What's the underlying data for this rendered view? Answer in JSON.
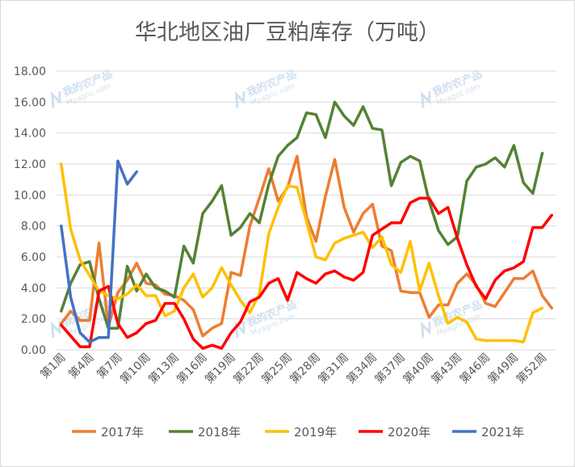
{
  "watermark": {
    "brand": "我的农产品",
    "domain": "Myagric.com"
  },
  "chart_data": {
    "type": "line",
    "title": "华北地区油厂豆粕库存（万吨）",
    "xlabel": "",
    "ylabel": "",
    "ylim": [
      0,
      18
    ],
    "yticks": [
      "0.00",
      "2.00",
      "4.00",
      "6.00",
      "8.00",
      "10.00",
      "12.00",
      "14.00",
      "16.00",
      "18.00"
    ],
    "xtick_labels": [
      "第1周",
      "第4周",
      "第7周",
      "第10周",
      "第13周",
      "第16周",
      "第19周",
      "第22周",
      "第25周",
      "第28周",
      "第31周",
      "第34周",
      "第37周",
      "第40周",
      "第43周",
      "第46周",
      "第49周",
      "第52周"
    ],
    "xtick_weeks": [
      1,
      4,
      7,
      10,
      13,
      16,
      19,
      22,
      25,
      28,
      31,
      34,
      37,
      40,
      43,
      46,
      49,
      52
    ],
    "grid": true,
    "legend_position": "bottom",
    "series": [
      {
        "name": "2017年",
        "color": "#ed7d31",
        "start_week": 1,
        "values": [
          1.7,
          2.5,
          1.9,
          1.9,
          6.9,
          1.5,
          3.7,
          4.5,
          5.6,
          4.3,
          4.2,
          3.6,
          3.5,
          3.2,
          2.6,
          0.9,
          1.4,
          1.7,
          5.0,
          4.8,
          8.0,
          9.8,
          11.7,
          9.6,
          10.5,
          12.5,
          8.6,
          7.0,
          9.9,
          12.3,
          9.2,
          7.6,
          8.8,
          9.4,
          6.7,
          6.4,
          3.8,
          3.7,
          3.7,
          2.1,
          2.9,
          2.9,
          4.3,
          4.9,
          4.2,
          3.0,
          2.8,
          3.7,
          4.6,
          4.6,
          5.1,
          3.5,
          2.7
        ]
      },
      {
        "name": "2018年",
        "color": "#548235",
        "start_week": 1,
        "values": [
          2.5,
          4.3,
          5.5,
          5.7,
          3.3,
          1.4,
          1.4,
          5.4,
          3.8,
          4.9,
          4.0,
          3.8,
          3.4,
          6.7,
          5.6,
          8.8,
          9.6,
          10.6,
          7.4,
          7.9,
          8.8,
          8.2,
          10.7,
          12.5,
          13.2,
          13.7,
          15.3,
          15.2,
          13.7,
          16.0,
          15.1,
          14.5,
          15.7,
          14.3,
          14.2,
          10.6,
          12.1,
          12.5,
          12.2,
          9.6,
          7.7,
          6.8,
          7.3,
          10.9,
          11.8,
          12.0,
          12.4,
          11.8,
          13.2,
          10.8,
          10.1,
          12.7
        ]
      },
      {
        "name": "2019年",
        "color": "#ffc000",
        "start_week": 1,
        "values": [
          12.0,
          7.8,
          5.8,
          4.8,
          3.8,
          3.5,
          3.3,
          3.6,
          4.2,
          3.5,
          3.5,
          2.2,
          2.5,
          4.0,
          4.9,
          3.4,
          4.0,
          5.3,
          4.2,
          3.2,
          2.4,
          3.6,
          7.5,
          9.2,
          10.6,
          10.5,
          8.3,
          6.0,
          5.8,
          6.9,
          7.2,
          7.4,
          7.6,
          6.6,
          7.3,
          5.5,
          5.0,
          7.0,
          3.8,
          5.6,
          3.5,
          1.7,
          2.1,
          1.8,
          0.7,
          0.6,
          0.6,
          0.6,
          0.6,
          0.5,
          2.4,
          2.7
        ]
      },
      {
        "name": "2020年",
        "color": "#ff0000",
        "start_week": 1,
        "values": [
          1.6,
          0.9,
          0.2,
          0.2,
          3.8,
          4.1,
          1.7,
          0.8,
          1.1,
          1.7,
          1.9,
          3.0,
          3.0,
          2.0,
          0.7,
          0.1,
          0.3,
          0.1,
          1.1,
          1.8,
          3.1,
          3.4,
          4.3,
          4.6,
          3.2,
          5.0,
          4.6,
          4.3,
          4.9,
          5.1,
          4.7,
          4.5,
          5.0,
          7.4,
          7.8,
          8.2,
          8.2,
          9.5,
          9.8,
          9.8,
          8.8,
          9.2,
          7.2,
          5.5,
          4.1,
          3.3,
          4.5,
          5.1,
          5.3,
          5.7,
          7.9,
          7.9,
          8.7
        ]
      },
      {
        "name": "2021年",
        "color": "#4472c4",
        "start_week": 1,
        "values": [
          8.0,
          3.4,
          1.1,
          0.5,
          0.8,
          0.8,
          12.2,
          10.7,
          11.5
        ]
      }
    ]
  }
}
